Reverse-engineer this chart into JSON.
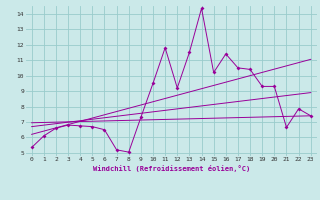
{
  "xlabel": "Windchill (Refroidissement éolien,°C)",
  "bg_color": "#cbe9e9",
  "line_color": "#990099",
  "grid_color": "#99cccc",
  "xlim": [
    -0.5,
    23.5
  ],
  "ylim": [
    4.8,
    14.5
  ],
  "xticks": [
    0,
    1,
    2,
    3,
    4,
    5,
    6,
    7,
    8,
    9,
    10,
    11,
    12,
    13,
    14,
    15,
    16,
    17,
    18,
    19,
    20,
    21,
    22,
    23
  ],
  "yticks": [
    5,
    6,
    7,
    8,
    9,
    10,
    11,
    12,
    13,
    14
  ],
  "line1_x": [
    0,
    1,
    2,
    3,
    4,
    5,
    6,
    7,
    8,
    9,
    10,
    11,
    12,
    13,
    14,
    15,
    16,
    17,
    18,
    19,
    20,
    21,
    22,
    23
  ],
  "line1_y": [
    5.35,
    6.1,
    6.6,
    6.8,
    6.75,
    6.7,
    6.5,
    5.2,
    5.05,
    7.3,
    9.5,
    11.8,
    9.2,
    11.5,
    14.35,
    10.2,
    11.4,
    10.5,
    10.4,
    9.3,
    9.3,
    6.65,
    7.85,
    7.4
  ],
  "line2_x": [
    0,
    23
  ],
  "line2_y": [
    6.2,
    11.05
  ],
  "line3_x": [
    0,
    23
  ],
  "line3_y": [
    6.7,
    8.9
  ],
  "line4_x": [
    0,
    23
  ],
  "line4_y": [
    6.95,
    7.4
  ]
}
